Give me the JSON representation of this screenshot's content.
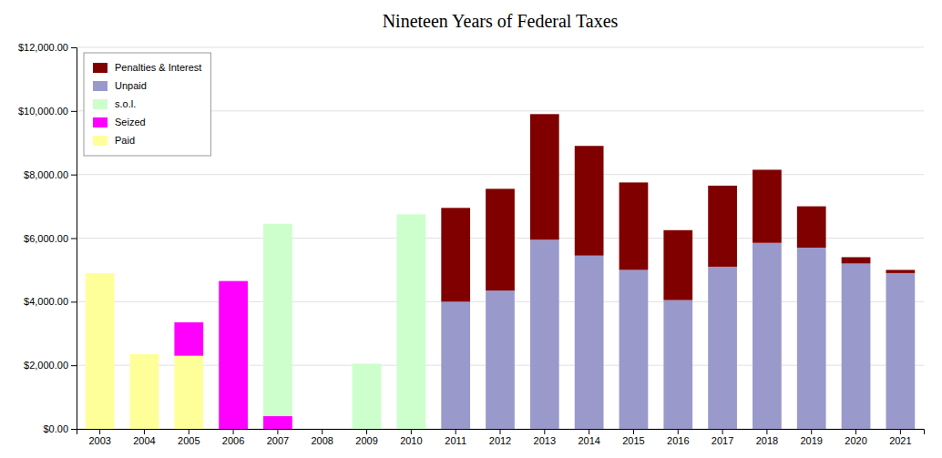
{
  "chart_data": {
    "type": "bar",
    "title": "Nineteen Years of Federal Taxes",
    "stacked": true,
    "grid": true,
    "legend": "upper left",
    "categories": [
      "2003",
      "2004",
      "2005",
      "2006",
      "2007",
      "2008",
      "2009",
      "2010",
      "2011",
      "2012",
      "2013",
      "2014",
      "2015",
      "2016",
      "2017",
      "2018",
      "2019",
      "2020",
      "2021"
    ],
    "series": [
      {
        "name": "Paid",
        "color": "#ffff99",
        "values": [
          4900,
          2350,
          2300,
          0,
          0,
          0,
          0,
          0,
          0,
          0,
          0,
          0,
          0,
          0,
          0,
          0,
          0,
          0,
          0
        ]
      },
      {
        "name": "Seized",
        "color": "#ff00ff",
        "values": [
          0,
          0,
          1050,
          4650,
          400,
          0,
          0,
          0,
          0,
          0,
          0,
          0,
          0,
          0,
          0,
          0,
          0,
          0,
          0
        ]
      },
      {
        "name": "s.o.l.",
        "color": "#ccffcc",
        "values": [
          0,
          0,
          0,
          0,
          6050,
          0,
          2050,
          6750,
          0,
          0,
          0,
          0,
          0,
          0,
          0,
          0,
          0,
          0,
          0
        ]
      },
      {
        "name": "Unpaid",
        "color": "#9999cc",
        "values": [
          0,
          0,
          0,
          0,
          0,
          0,
          0,
          0,
          4000,
          4350,
          5950,
          5450,
          5000,
          4050,
          5100,
          5850,
          5700,
          5200,
          4900
        ]
      },
      {
        "name": "Penalties & Interest",
        "color": "#800000",
        "values": [
          0,
          0,
          0,
          0,
          0,
          0,
          0,
          0,
          2950,
          3200,
          3950,
          3450,
          2750,
          2200,
          2550,
          2300,
          1300,
          200,
          100
        ]
      }
    ],
    "ylim": [
      0,
      12000
    ],
    "yticks": [
      {
        "value": 0,
        "label": "$0.00"
      },
      {
        "value": 2000,
        "label": "$2,000.00"
      },
      {
        "value": 4000,
        "label": "$4,000.00"
      },
      {
        "value": 6000,
        "label": "$6,000.00"
      },
      {
        "value": 8000,
        "label": "$8,000.00"
      },
      {
        "value": 10000,
        "label": "$10,000.00"
      },
      {
        "value": 12000,
        "label": "$12,000.00"
      }
    ]
  }
}
